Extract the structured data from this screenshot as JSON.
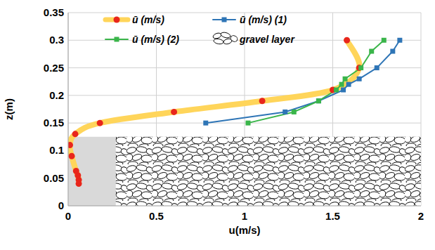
{
  "chart_data": {
    "type": "line",
    "x_label": "u(m/s)",
    "y_label": "z(m)",
    "xlim": [
      0,
      2
    ],
    "xticks": [
      0,
      0.5,
      1,
      1.5,
      2
    ],
    "ylim": [
      0,
      0.35
    ],
    "yticks": [
      0,
      0.05,
      0.1,
      0.15,
      0.2,
      0.25,
      0.3,
      0.35
    ],
    "grid": true,
    "legend": "top",
    "series": [
      {
        "name": "ū (m/s)",
        "color": "#ffd55a",
        "marker": "circle",
        "line_style": "smooth",
        "x": [
          0.06,
          0.06,
          0.055,
          0.045,
          0.02,
          0.01,
          0.04,
          0.18,
          0.6,
          1.1,
          1.5,
          1.65,
          1.58
        ],
        "values": [
          0.04,
          0.047,
          0.055,
          0.063,
          0.09,
          0.11,
          0.13,
          0.15,
          0.17,
          0.19,
          0.21,
          0.25,
          0.3
        ]
      },
      {
        "name": "ū (m/s) (1)",
        "color": "#2e75b6",
        "marker": "square",
        "line_style": "solid",
        "x": [
          0.78,
          1.23,
          1.42,
          1.56,
          1.59,
          1.65,
          1.75,
          1.84,
          1.88
        ],
        "values": [
          0.15,
          0.17,
          0.19,
          0.21,
          0.22,
          0.23,
          0.25,
          0.28,
          0.3
        ]
      },
      {
        "name": "ū (m/s) (2)",
        "color": "#3ab54a",
        "marker": "square",
        "line_style": "solid",
        "x": [
          1.02,
          1.28,
          1.42,
          1.52,
          1.55,
          1.57,
          1.66,
          1.72,
          1.79
        ],
        "values": [
          0.15,
          0.17,
          0.19,
          0.21,
          0.22,
          0.23,
          0.25,
          0.28,
          0.3
        ]
      },
      {
        "name": "gravel layer",
        "type": "area",
        "color": "#d9d9d9",
        "x": [
          0,
          2
        ],
        "values": [
          0.125,
          0.125
        ]
      }
    ]
  }
}
